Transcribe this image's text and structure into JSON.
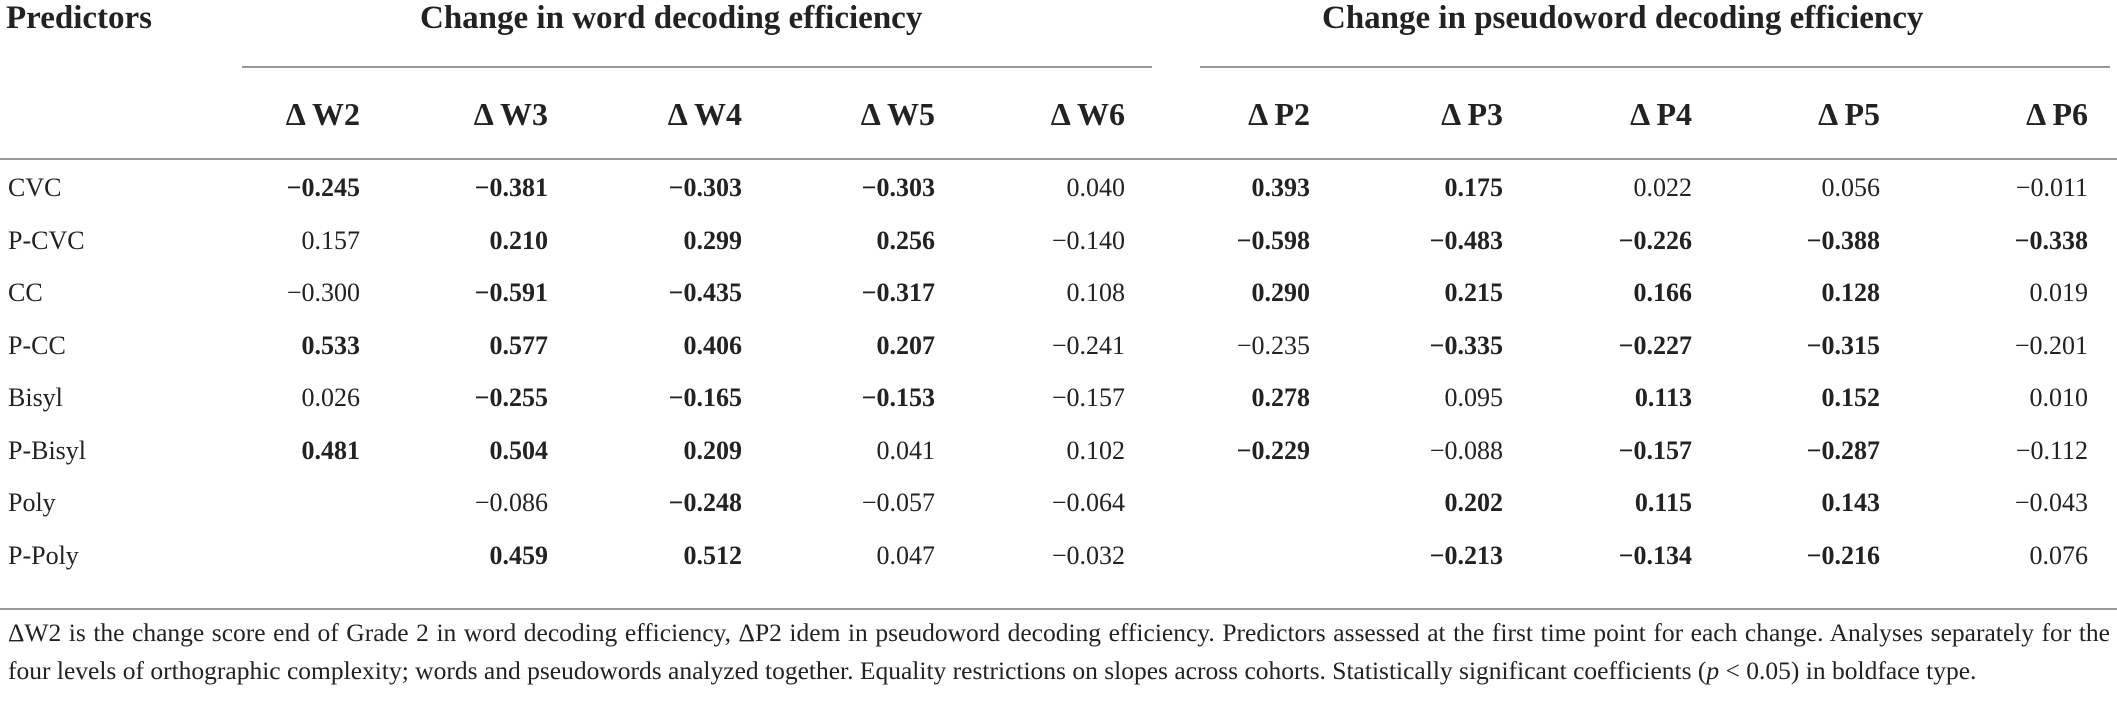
{
  "header": {
    "predictors": "Predictors",
    "group_word": "Change in word decoding efficiency",
    "group_pseudo": "Change in pseudoword decoding efficiency",
    "columns": [
      "Δ W2",
      "Δ W3",
      "Δ W4",
      "Δ W5",
      "Δ W6",
      "Δ P2",
      "Δ P3",
      "Δ P4",
      "Δ P5",
      "Δ P6"
    ]
  },
  "rows": [
    {
      "label": "CVC",
      "cells": [
        {
          "v": "−0.245",
          "b": true
        },
        {
          "v": "−0.381",
          "b": true
        },
        {
          "v": "−0.303",
          "b": true
        },
        {
          "v": "−0.303",
          "b": true
        },
        {
          "v": "0.040",
          "b": false
        },
        {
          "v": "0.393",
          "b": true
        },
        {
          "v": "0.175",
          "b": true
        },
        {
          "v": "0.022",
          "b": false
        },
        {
          "v": "0.056",
          "b": false
        },
        {
          "v": "−0.011",
          "b": false
        }
      ]
    },
    {
      "label": "P-CVC",
      "cells": [
        {
          "v": "0.157",
          "b": false
        },
        {
          "v": "0.210",
          "b": true
        },
        {
          "v": "0.299",
          "b": true
        },
        {
          "v": "0.256",
          "b": true
        },
        {
          "v": "−0.140",
          "b": false
        },
        {
          "v": "−0.598",
          "b": true
        },
        {
          "v": "−0.483",
          "b": true
        },
        {
          "v": "−0.226",
          "b": true
        },
        {
          "v": "−0.388",
          "b": true
        },
        {
          "v": "−0.338",
          "b": true
        }
      ]
    },
    {
      "label": "CC",
      "cells": [
        {
          "v": "−0.300",
          "b": false
        },
        {
          "v": "−0.591",
          "b": true
        },
        {
          "v": "−0.435",
          "b": true
        },
        {
          "v": "−0.317",
          "b": true
        },
        {
          "v": "0.108",
          "b": false
        },
        {
          "v": "0.290",
          "b": true
        },
        {
          "v": "0.215",
          "b": true
        },
        {
          "v": "0.166",
          "b": true
        },
        {
          "v": "0.128",
          "b": true
        },
        {
          "v": "0.019",
          "b": false
        }
      ]
    },
    {
      "label": "P-CC",
      "cells": [
        {
          "v": "0.533",
          "b": true
        },
        {
          "v": "0.577",
          "b": true
        },
        {
          "v": "0.406",
          "b": true
        },
        {
          "v": "0.207",
          "b": true
        },
        {
          "v": "−0.241",
          "b": false
        },
        {
          "v": "−0.235",
          "b": false
        },
        {
          "v": "−0.335",
          "b": true
        },
        {
          "v": "−0.227",
          "b": true
        },
        {
          "v": "−0.315",
          "b": true
        },
        {
          "v": "−0.201",
          "b": false
        }
      ]
    },
    {
      "label": "Bisyl",
      "cells": [
        {
          "v": "0.026",
          "b": false
        },
        {
          "v": "−0.255",
          "b": true
        },
        {
          "v": "−0.165",
          "b": true
        },
        {
          "v": "−0.153",
          "b": true
        },
        {
          "v": "−0.157",
          "b": false
        },
        {
          "v": "0.278",
          "b": true
        },
        {
          "v": "0.095",
          "b": false
        },
        {
          "v": "0.113",
          "b": true
        },
        {
          "v": "0.152",
          "b": true
        },
        {
          "v": "0.010",
          "b": false
        }
      ]
    },
    {
      "label": "P-Bisyl",
      "cells": [
        {
          "v": "0.481",
          "b": true
        },
        {
          "v": "0.504",
          "b": true
        },
        {
          "v": "0.209",
          "b": true
        },
        {
          "v": "0.041",
          "b": false
        },
        {
          "v": "0.102",
          "b": false
        },
        {
          "v": "−0.229",
          "b": true
        },
        {
          "v": "−0.088",
          "b": false
        },
        {
          "v": "−0.157",
          "b": true
        },
        {
          "v": "−0.287",
          "b": true
        },
        {
          "v": "−0.112",
          "b": false
        }
      ]
    },
    {
      "label": "Poly",
      "cells": [
        {
          "v": "",
          "b": false
        },
        {
          "v": "−0.086",
          "b": false
        },
        {
          "v": "−0.248",
          "b": true
        },
        {
          "v": "−0.057",
          "b": false
        },
        {
          "v": "−0.064",
          "b": false
        },
        {
          "v": "",
          "b": false
        },
        {
          "v": "0.202",
          "b": true
        },
        {
          "v": "0.115",
          "b": true
        },
        {
          "v": "0.143",
          "b": true
        },
        {
          "v": "−0.043",
          "b": false
        }
      ]
    },
    {
      "label": "P-Poly",
      "cells": [
        {
          "v": "",
          "b": false
        },
        {
          "v": "0.459",
          "b": true
        },
        {
          "v": "0.512",
          "b": true
        },
        {
          "v": "0.047",
          "b": false
        },
        {
          "v": "−0.032",
          "b": false
        },
        {
          "v": "",
          "b": false
        },
        {
          "v": "−0.213",
          "b": true
        },
        {
          "v": "−0.134",
          "b": true
        },
        {
          "v": "−0.216",
          "b": true
        },
        {
          "v": "0.076",
          "b": false
        }
      ]
    }
  ],
  "footnote": {
    "part1": "ΔW2 is the change score end of Grade 2 in word decoding efficiency, ΔP2 idem in pseudoword decoding efficiency. Predictors assessed at the first time point for each change. Analyses separately for the four levels of orthographic complexity; words and pseudowords analyzed together. Equality restrictions on slopes across cohorts. Statistically significant coefficients (",
    "p": "p",
    "part2": " < 0.05) in boldface type."
  }
}
